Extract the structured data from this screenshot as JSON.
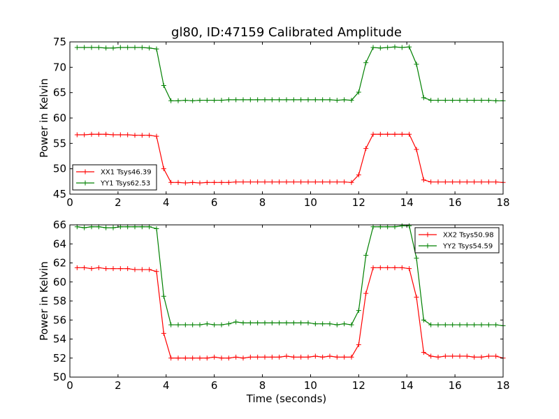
{
  "chart_data": [
    {
      "type": "line",
      "title": "gl80, ID:47159 Calibrated Amplitude",
      "xlabel": "",
      "ylabel": "Power in Kelvin",
      "xlim": [
        0,
        18
      ],
      "ylim": [
        45,
        75
      ],
      "xticks": [
        "0",
        "2",
        "4",
        "6",
        "8",
        "10",
        "12",
        "14",
        "16",
        "18"
      ],
      "yticks": [
        "45",
        "50",
        "55",
        "60",
        "65",
        "70",
        "75"
      ],
      "grid": false,
      "legend_position": "lower-left",
      "x": [
        0.3,
        0.6,
        0.9,
        1.2,
        1.5,
        1.8,
        2.1,
        2.4,
        2.7,
        3.0,
        3.3,
        3.6,
        3.9,
        4.2,
        4.5,
        4.8,
        5.1,
        5.4,
        5.7,
        6.0,
        6.3,
        6.6,
        6.9,
        7.2,
        7.5,
        7.8,
        8.1,
        8.4,
        8.7,
        9.0,
        9.3,
        9.6,
        9.9,
        10.2,
        10.5,
        10.8,
        11.1,
        11.4,
        11.7,
        12.0,
        12.3,
        12.6,
        12.9,
        13.2,
        13.5,
        13.8,
        14.1,
        14.4,
        14.7,
        15.0,
        15.3,
        15.6,
        15.9,
        16.2,
        16.5,
        16.8,
        17.1,
        17.4,
        17.7,
        18.0
      ],
      "series": [
        {
          "name": "XX1 Tsys46.39",
          "color": "#ff0000",
          "values": [
            56.7,
            56.7,
            56.8,
            56.8,
            56.8,
            56.7,
            56.7,
            56.7,
            56.6,
            56.6,
            56.6,
            56.4,
            50.0,
            47.3,
            47.3,
            47.2,
            47.3,
            47.2,
            47.3,
            47.3,
            47.3,
            47.3,
            47.4,
            47.4,
            47.4,
            47.4,
            47.4,
            47.4,
            47.4,
            47.4,
            47.4,
            47.4,
            47.4,
            47.4,
            47.4,
            47.4,
            47.4,
            47.4,
            47.3,
            48.8,
            54.0,
            56.8,
            56.8,
            56.8,
            56.8,
            56.8,
            56.8,
            53.8,
            47.8,
            47.4,
            47.4,
            47.4,
            47.4,
            47.4,
            47.4,
            47.4,
            47.4,
            47.4,
            47.4,
            47.3
          ]
        },
        {
          "name": "YY1 Tsys62.53",
          "color": "#008000",
          "values": [
            73.9,
            73.9,
            73.9,
            73.9,
            73.8,
            73.8,
            73.9,
            73.9,
            73.9,
            73.9,
            73.8,
            73.6,
            66.4,
            63.4,
            63.4,
            63.5,
            63.4,
            63.5,
            63.5,
            63.5,
            63.5,
            63.6,
            63.6,
            63.6,
            63.6,
            63.6,
            63.6,
            63.6,
            63.6,
            63.6,
            63.6,
            63.6,
            63.6,
            63.6,
            63.6,
            63.6,
            63.5,
            63.6,
            63.5,
            65.1,
            70.9,
            73.9,
            73.8,
            73.9,
            74.0,
            73.9,
            74.0,
            70.6,
            64.0,
            63.5,
            63.5,
            63.5,
            63.5,
            63.5,
            63.5,
            63.5,
            63.5,
            63.5,
            63.4,
            63.4
          ]
        }
      ]
    },
    {
      "type": "line",
      "title": "",
      "xlabel": "Time (seconds)",
      "ylabel": "Power in Kelvin",
      "xlim": [
        0,
        18
      ],
      "ylim": [
        50,
        66
      ],
      "xticks": [
        "0",
        "2",
        "4",
        "6",
        "8",
        "10",
        "12",
        "14",
        "16",
        "18"
      ],
      "yticks": [
        "50",
        "52",
        "54",
        "56",
        "58",
        "60",
        "62",
        "64",
        "66"
      ],
      "grid": false,
      "legend_position": "upper-right",
      "x": [
        0.3,
        0.6,
        0.9,
        1.2,
        1.5,
        1.8,
        2.1,
        2.4,
        2.7,
        3.0,
        3.3,
        3.6,
        3.9,
        4.2,
        4.5,
        4.8,
        5.1,
        5.4,
        5.7,
        6.0,
        6.3,
        6.6,
        6.9,
        7.2,
        7.5,
        7.8,
        8.1,
        8.4,
        8.7,
        9.0,
        9.3,
        9.6,
        9.9,
        10.2,
        10.5,
        10.8,
        11.1,
        11.4,
        11.7,
        12.0,
        12.3,
        12.6,
        12.9,
        13.2,
        13.5,
        13.8,
        14.1,
        14.4,
        14.7,
        15.0,
        15.3,
        15.6,
        15.9,
        16.2,
        16.5,
        16.8,
        17.1,
        17.4,
        17.7,
        18.0
      ],
      "series": [
        {
          "name": "XX2 Tsys50.98",
          "color": "#ff0000",
          "values": [
            61.5,
            61.5,
            61.4,
            61.5,
            61.4,
            61.4,
            61.4,
            61.4,
            61.3,
            61.3,
            61.3,
            61.1,
            54.6,
            52.0,
            52.0,
            52.0,
            52.0,
            52.0,
            52.0,
            52.1,
            52.0,
            52.0,
            52.1,
            52.0,
            52.1,
            52.1,
            52.1,
            52.1,
            52.1,
            52.2,
            52.1,
            52.1,
            52.1,
            52.2,
            52.1,
            52.2,
            52.1,
            52.1,
            52.1,
            53.4,
            58.8,
            61.5,
            61.5,
            61.5,
            61.5,
            61.5,
            61.4,
            58.4,
            52.6,
            52.2,
            52.1,
            52.2,
            52.2,
            52.2,
            52.2,
            52.1,
            52.1,
            52.2,
            52.2,
            52.0
          ]
        },
        {
          "name": "YY2 Tsys54.59",
          "color": "#008000",
          "values": [
            65.8,
            65.7,
            65.8,
            65.8,
            65.7,
            65.7,
            65.8,
            65.8,
            65.8,
            65.8,
            65.8,
            65.6,
            58.5,
            55.5,
            55.5,
            55.5,
            55.5,
            55.5,
            55.6,
            55.5,
            55.5,
            55.6,
            55.8,
            55.7,
            55.7,
            55.7,
            55.7,
            55.7,
            55.7,
            55.7,
            55.7,
            55.7,
            55.7,
            55.6,
            55.6,
            55.6,
            55.5,
            55.6,
            55.5,
            57.0,
            62.8,
            65.8,
            65.8,
            65.8,
            65.8,
            65.9,
            65.9,
            62.5,
            56.0,
            55.5,
            55.5,
            55.5,
            55.5,
            55.5,
            55.5,
            55.5,
            55.5,
            55.5,
            55.5,
            55.4
          ]
        }
      ]
    }
  ]
}
